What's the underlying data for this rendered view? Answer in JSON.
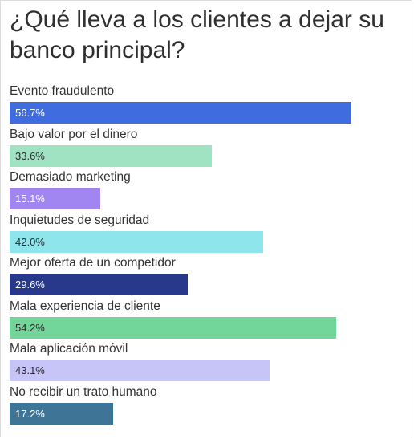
{
  "chart_data": {
    "type": "bar",
    "orientation": "horizontal",
    "title": "¿Qué lleva a los clientes a dejar su banco principal?",
    "xlim": [
      0,
      60
    ],
    "grid": false,
    "categories": [
      "Evento fraudulento",
      "Bajo valor por el dinero",
      "Demasiado marketing",
      "Inquietudes de seguridad",
      "Mejor oferta de un competidor",
      "Mala experiencia de cliente",
      "Mala aplicación móvil",
      "No recibir un trato humano"
    ],
    "values": [
      56.7,
      33.6,
      15.1,
      42.0,
      29.6,
      54.2,
      43.1,
      17.2
    ],
    "value_labels": [
      "56.7%",
      "33.6%",
      "15.1%",
      "42.0%",
      "29.6%",
      "54.2%",
      "43.1%",
      "17.2%"
    ],
    "colors": [
      "#3f6de0",
      "#9fe3c3",
      "#a186f2",
      "#8ee6ec",
      "#28388a",
      "#72d59a",
      "#c7c4f7",
      "#3e7596"
    ],
    "label_colors": [
      "#ffffff",
      "#2b2b2b",
      "#ffffff",
      "#2b2b2b",
      "#ffffff",
      "#2b2b2b",
      "#2b2b2b",
      "#ffffff"
    ]
  }
}
